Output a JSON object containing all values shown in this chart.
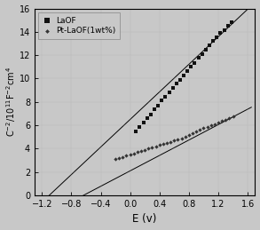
{
  "title": "",
  "xlabel": "E (v)",
  "ylabel": "C$^{-2}$/10$^{11}$F$^{-2}$cm$^{4}$",
  "xlim": [
    -1.3,
    1.7
  ],
  "ylim": [
    0,
    16
  ],
  "xticks": [
    -1.2,
    -0.8,
    -0.4,
    0.0,
    0.4,
    0.8,
    1.2,
    1.6
  ],
  "yticks": [
    0,
    2,
    4,
    6,
    8,
    10,
    12,
    14,
    16
  ],
  "bg_color": "#c8c8c8",
  "plot_bg_color": "#c8c8c8",
  "series1_label": "LaOF",
  "series1_x": [
    0.08,
    0.13,
    0.18,
    0.23,
    0.28,
    0.33,
    0.38,
    0.43,
    0.48,
    0.53,
    0.58,
    0.63,
    0.68,
    0.73,
    0.78,
    0.83,
    0.88,
    0.93,
    0.98,
    1.03,
    1.08,
    1.13,
    1.18,
    1.23,
    1.28,
    1.33,
    1.38
  ],
  "series1_y": [
    5.5,
    5.85,
    6.2,
    6.6,
    6.95,
    7.35,
    7.7,
    8.1,
    8.45,
    8.85,
    9.2,
    9.55,
    9.9,
    10.3,
    10.65,
    11.0,
    11.35,
    11.75,
    12.1,
    12.45,
    12.85,
    13.2,
    13.55,
    13.9,
    14.15,
    14.5,
    14.8
  ],
  "series1_line_slope": 5.9,
  "series1_line_intercept": 6.5,
  "series1_line_x0": -1.25,
  "series1_line_x1": 1.65,
  "series1_marker": "s",
  "series1_color": "#111111",
  "series1_markersize": 3.5,
  "series2_label": "Pt-LaOF(1wt%)",
  "series2_x": [
    -0.2,
    -0.15,
    -0.1,
    -0.05,
    0.0,
    0.05,
    0.1,
    0.15,
    0.2,
    0.25,
    0.3,
    0.35,
    0.4,
    0.45,
    0.5,
    0.55,
    0.6,
    0.65,
    0.7,
    0.75,
    0.8,
    0.85,
    0.9,
    0.95,
    1.0,
    1.05,
    1.1,
    1.15,
    1.2,
    1.25,
    1.3,
    1.35,
    1.4
  ],
  "series2_y": [
    3.1,
    3.2,
    3.3,
    3.4,
    3.5,
    3.6,
    3.7,
    3.8,
    3.9,
    4.0,
    4.1,
    4.2,
    4.3,
    4.4,
    4.5,
    4.6,
    4.7,
    4.8,
    4.9,
    5.05,
    5.2,
    5.35,
    5.5,
    5.6,
    5.75,
    5.85,
    6.0,
    6.1,
    6.25,
    6.35,
    6.5,
    6.6,
    6.75
  ],
  "series2_line_slope": 3.3,
  "series2_line_intercept": 2.1,
  "series2_line_x0": -1.25,
  "series2_line_x1": 1.65,
  "series2_marker": "D",
  "series2_color": "#333333",
  "series2_markersize": 2.2,
  "legend_loc": "upper left",
  "legend_fontsize": 6.5,
  "tick_fontsize": 7,
  "label_fontsize": 8.5
}
